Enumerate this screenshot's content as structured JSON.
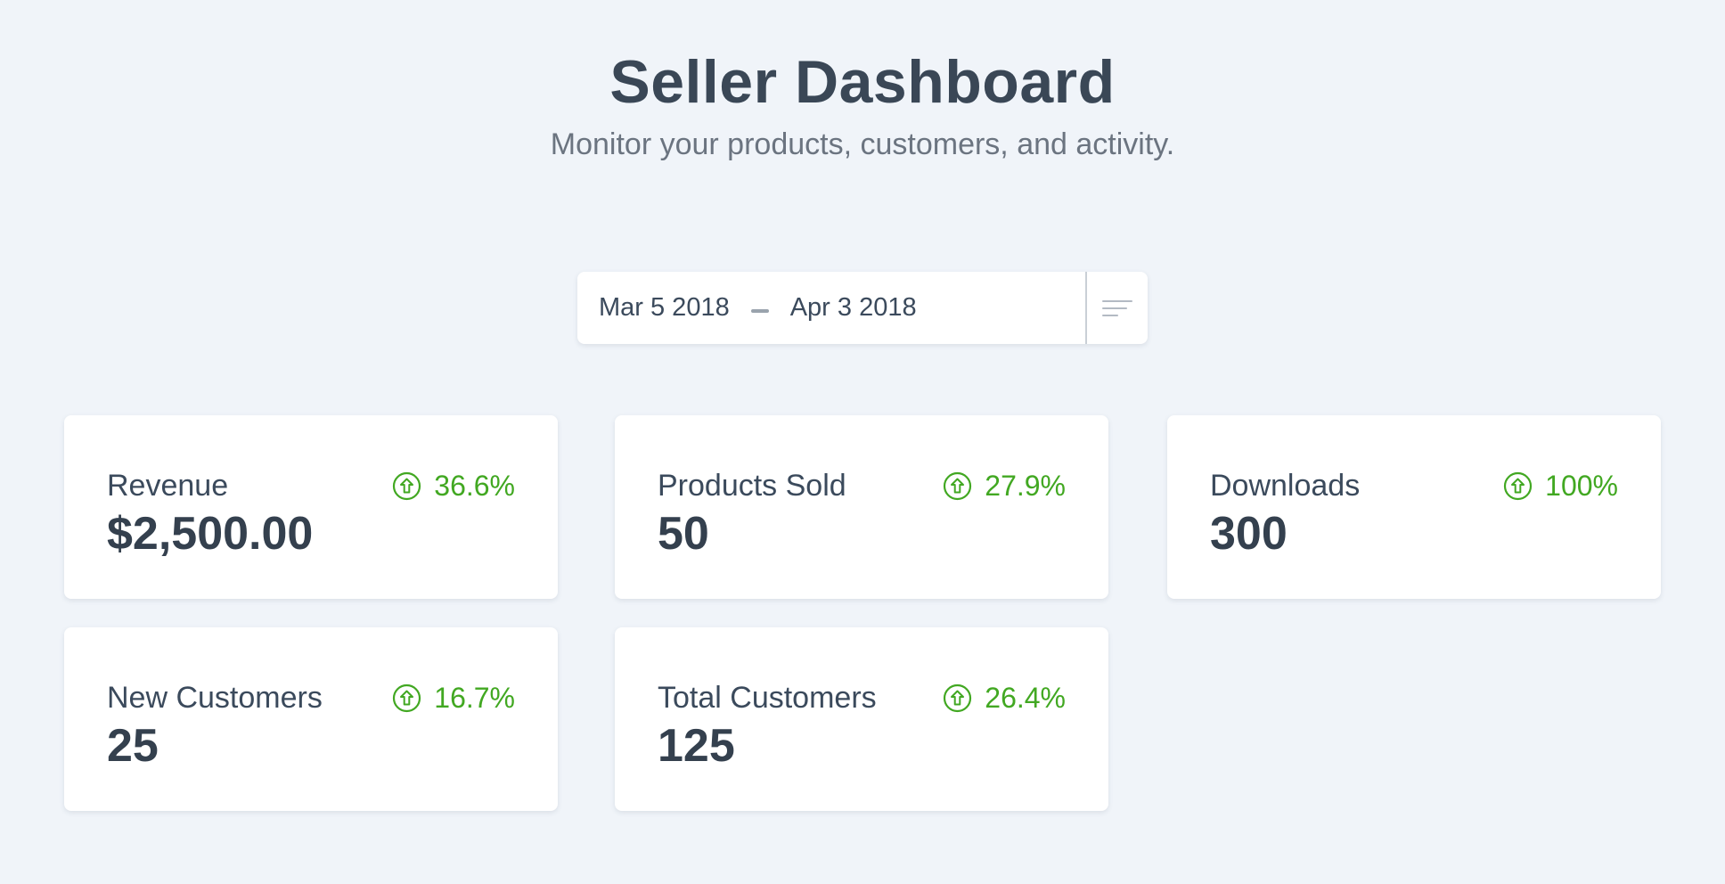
{
  "header": {
    "title": "Seller Dashboard",
    "subtitle": "Monitor your products, customers, and activity."
  },
  "date_range": {
    "start": "Mar 5 2018",
    "end": "Apr 3 2018",
    "filter_icon": "filter-lines-icon"
  },
  "colors": {
    "background": "#f0f4f9",
    "positive": "#42a822",
    "text": "#3b4a5c"
  },
  "cards": [
    {
      "label": "Revenue",
      "value": "$2,500.00",
      "change": "36.6%",
      "trend_icon": "arrow-up-circle-icon"
    },
    {
      "label": "Products Sold",
      "value": "50",
      "change": "27.9%",
      "trend_icon": "arrow-up-circle-icon"
    },
    {
      "label": "Downloads",
      "value": "300",
      "change": "100%",
      "trend_icon": "arrow-up-circle-icon"
    },
    {
      "label": "New Customers",
      "value": "25",
      "change": "16.7%",
      "trend_icon": "arrow-up-circle-icon"
    },
    {
      "label": "Total Customers",
      "value": "125",
      "change": "26.4%",
      "trend_icon": "arrow-up-circle-icon"
    }
  ]
}
